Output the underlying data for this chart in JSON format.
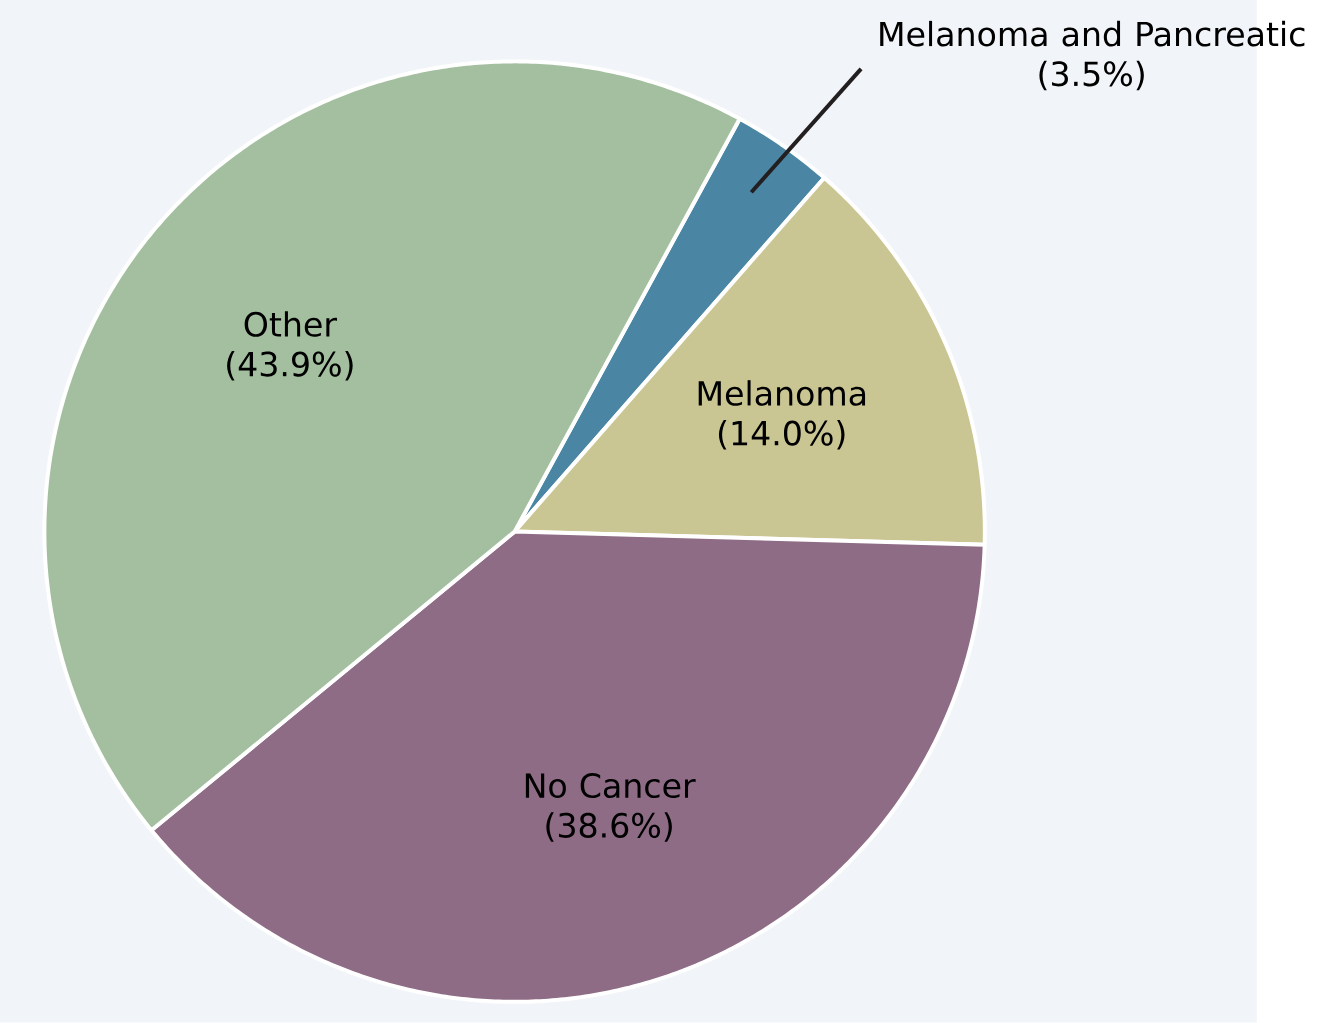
{
  "chart_data": {
    "type": "pie",
    "categories": [
      "Melanoma and Pancreatic",
      "Melanoma",
      "No Cancer",
      "Other"
    ],
    "values": [
      3.5,
      14.0,
      38.6,
      43.9
    ],
    "colors": [
      "#4a86a4",
      "#c9c693",
      "#8e6c85",
      "#a3bf9f"
    ],
    "value_labels": [
      "(3.5%)",
      "(14.0%)",
      "(38.6%)",
      "(43.9%)"
    ]
  }
}
